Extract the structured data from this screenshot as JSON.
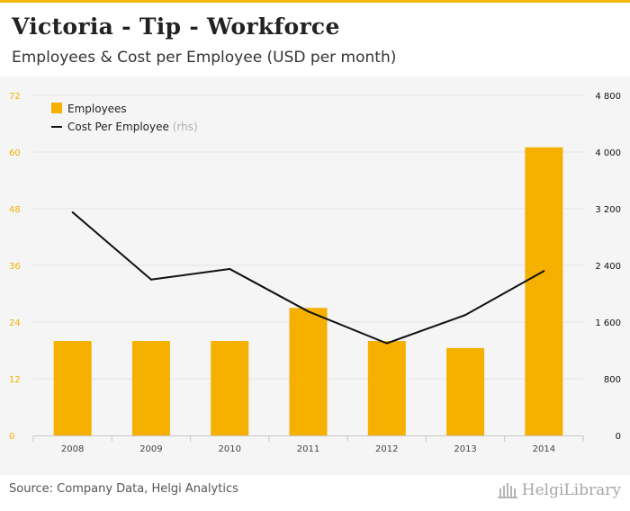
{
  "header": {
    "title": "Victoria - Tip - Workforce",
    "subtitle": "Employees & Cost per Employee (USD per month)"
  },
  "footer": {
    "source": "Source: Company Data, Helgi Analytics",
    "brand": "HelgiLibrary",
    "brand_icon": "library-building-icon"
  },
  "colors": {
    "bar": "#f5b000",
    "line": "#111111",
    "left_axis": "#f5b000",
    "right_axis": "#111111",
    "grid": "#e2e2e2"
  },
  "chart_data": {
    "type": "bar",
    "title": "Victoria - Tip - Workforce",
    "subtitle": "Employees & Cost per Employee (USD per month)",
    "categories": [
      "2008",
      "2009",
      "2010",
      "2011",
      "2012",
      "2013",
      "2014"
    ],
    "series": [
      {
        "name": "Employees",
        "type": "bar",
        "axis": "left",
        "values": [
          20,
          20,
          20,
          27,
          20,
          18.5,
          61
        ]
      },
      {
        "name": "Cost Per Employee",
        "suffix": "(rhs)",
        "type": "line",
        "axis": "right",
        "values": [
          3150,
          2200,
          2350,
          1750,
          1300,
          1700,
          2320
        ]
      }
    ],
    "left_axis": {
      "ylim": [
        0,
        72
      ],
      "ticks": [
        "0",
        "12",
        "24",
        "36",
        "48",
        "60",
        "72"
      ]
    },
    "right_axis": {
      "ylim": [
        0,
        4800
      ],
      "ticks": [
        "0",
        "800",
        "1 600",
        "2 400",
        "3 200",
        "4 000",
        "4 800"
      ]
    },
    "grid": true,
    "legend": "top-left"
  }
}
